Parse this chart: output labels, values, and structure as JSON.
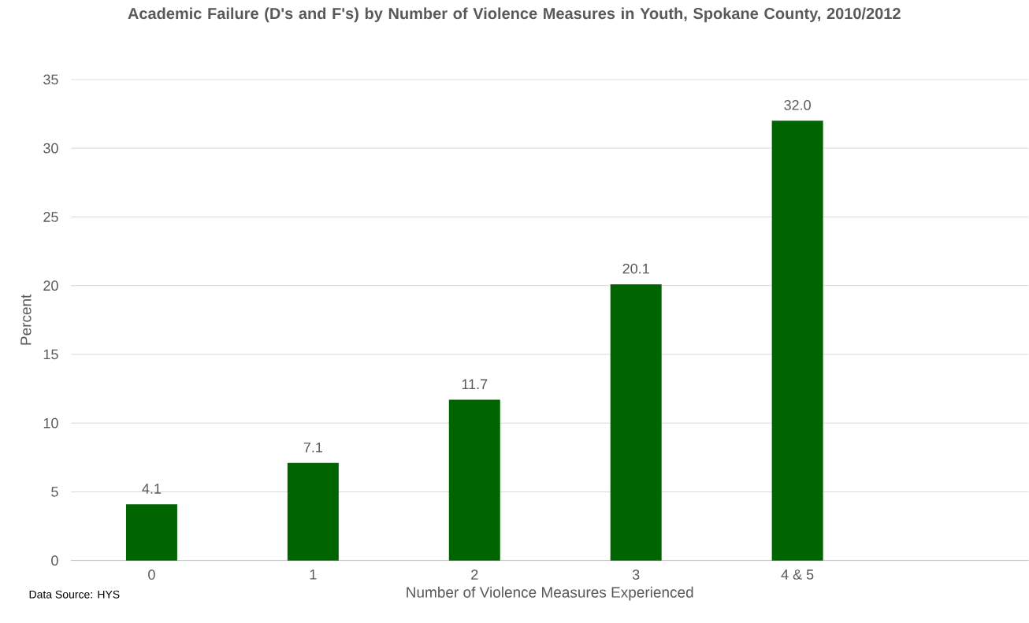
{
  "chart_data": {
    "type": "bar",
    "title": "Academic Failure (D's and F's) by Number of Violence Measures in Youth, Spokane County, 2010/2012",
    "xlabel": "Number of Violence Measures Experienced",
    "ylabel": "Percent",
    "categories": [
      "0",
      "1",
      "2",
      "3",
      "4 & 5"
    ],
    "values": [
      4.1,
      7.1,
      11.7,
      20.1,
      32.0
    ],
    "value_labels": [
      "4.1",
      "7.1",
      "11.7",
      "20.1",
      "32.0"
    ],
    "color": "#006400",
    "ylim": [
      0,
      35
    ],
    "yticks": [
      0,
      5,
      10,
      15,
      20,
      25,
      30,
      35
    ],
    "grid": "y",
    "annotations": [
      "Data Source: HYS"
    ]
  }
}
